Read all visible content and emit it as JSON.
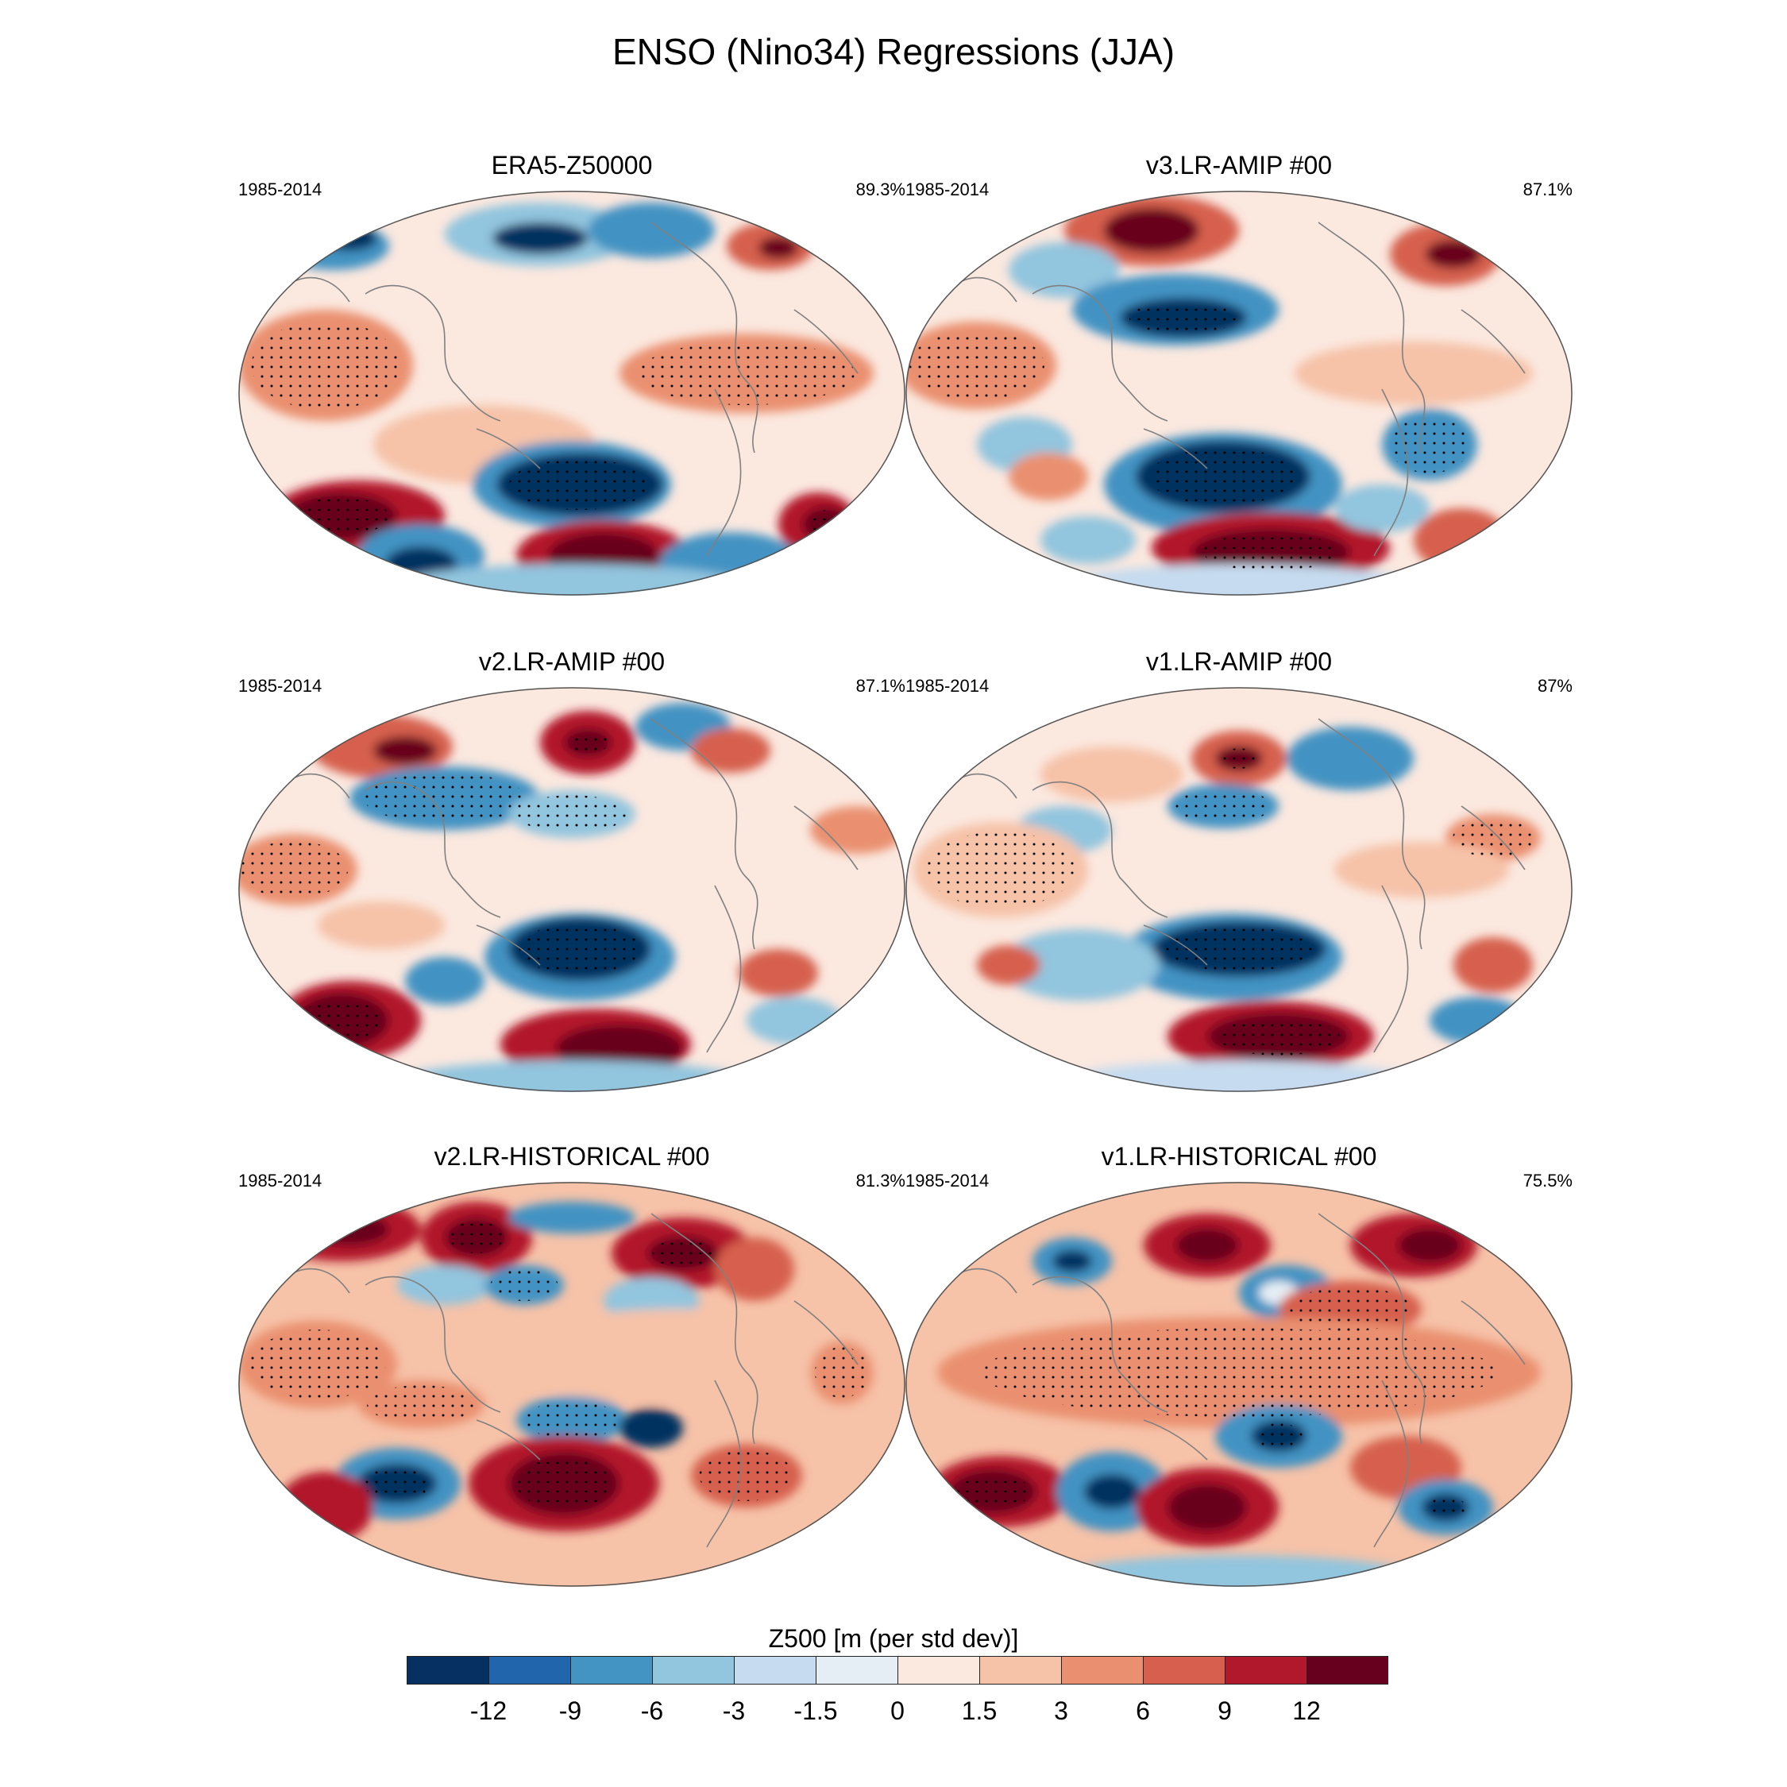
{
  "title": "ENSO (Nino34) Regressions (JJA)",
  "chart_data": {
    "type": "heatmap",
    "title": "ENSO (Nino34) Regressions (JJA)",
    "variable": "Z500 [m (per std dev)]",
    "colorbar": {
      "label": "Z500 [m (per std dev)]",
      "ticks": [
        "-12",
        "-9",
        "-6",
        "-3",
        "-1.5",
        "0",
        "1.5",
        "3",
        "6",
        "9",
        "12"
      ],
      "colors": [
        "#053061",
        "#2166ac",
        "#4393c3",
        "#92c5de",
        "#c6dbef",
        "#e6eef5",
        "#fbe8df",
        "#f6c2a8",
        "#ea9070",
        "#d6604d",
        "#b2182b",
        "#67001f"
      ]
    },
    "panels": [
      {
        "name": "ERA5-Z50000",
        "period": "1985-2014",
        "pattern_corr": "89.3%"
      },
      {
        "name": "v3.LR-AMIP  #00",
        "period": "1985-2014",
        "pattern_corr": "87.1%"
      },
      {
        "name": "v2.LR-AMIP  #00",
        "period": "1985-2014",
        "pattern_corr": "87.1%"
      },
      {
        "name": "v1.LR-AMIP  #00",
        "period": "1985-2014",
        "pattern_corr": "87%"
      },
      {
        "name": "v2.LR-HISTORICAL  #00",
        "period": "1985-2014",
        "pattern_corr": "81.3%"
      },
      {
        "name": "v1.LR-HISTORICAL  #00",
        "period": "1985-2014",
        "pattern_corr": "75.5%"
      }
    ]
  }
}
